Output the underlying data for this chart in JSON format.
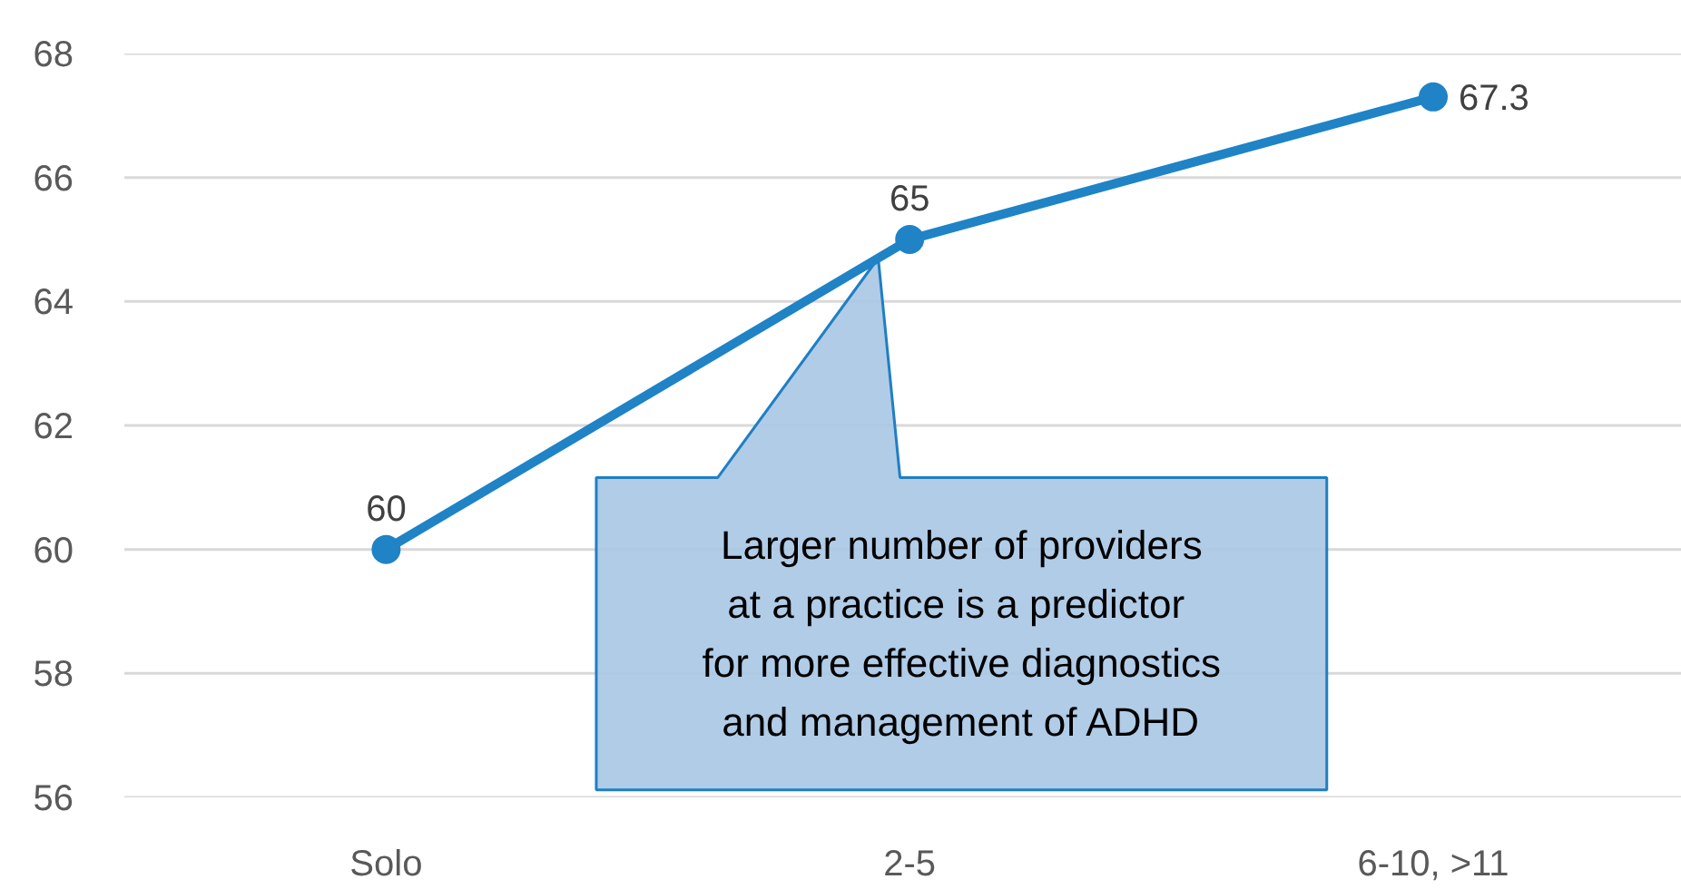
{
  "chart_data": {
    "type": "line",
    "categories": [
      "Solo",
      "2-5",
      "6-10, >11"
    ],
    "series": [
      {
        "color": "#1f83c6",
        "values": [
          60,
          65,
          67.3
        ]
      }
    ],
    "ylim": [
      56,
      68
    ],
    "yticks": [
      56,
      58,
      60,
      62,
      64,
      66,
      68
    ],
    "grid": "y",
    "marker": "circle",
    "data_labels": true,
    "annotations": [
      "Larger number of providers\nat a practice is a  predictor\nfor more effective diagnostics\nand management of ADHD"
    ]
  }
}
